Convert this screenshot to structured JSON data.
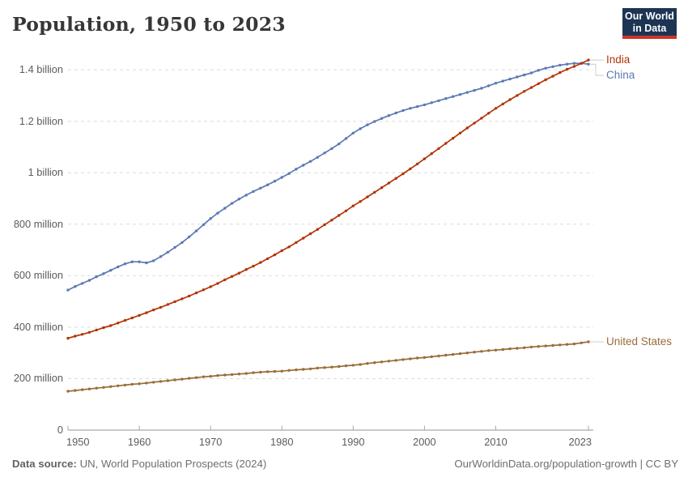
{
  "header": {
    "title": "Population, 1950 to 2023"
  },
  "logo": {
    "line1": "Our World",
    "line2": "in Data",
    "bg_color": "#1d3553",
    "accent_color": "#cc3529"
  },
  "footer": {
    "source_label": "Data source:",
    "source_text": "UN, World Population Prospects (2024)",
    "right_text": "OurWorldinData.org/population-growth | CC BY"
  },
  "chart_data": {
    "type": "line",
    "title": "Population, 1950 to 2023",
    "xlabel": "",
    "ylabel": "",
    "unit": "people (millions)",
    "xlim": [
      1950,
      2023
    ],
    "ylim": [
      0,
      1480
    ],
    "grid": "horizontal-dashed",
    "legend_position": "labels-at-line-ends-right",
    "markers": "yearly-dots",
    "x_start": 1950,
    "x_end": 2023,
    "x_ticks": [
      {
        "year": 1950,
        "label": "1950"
      },
      {
        "year": 1960,
        "label": "1960"
      },
      {
        "year": 1970,
        "label": "1970"
      },
      {
        "year": 1980,
        "label": "1980"
      },
      {
        "year": 1990,
        "label": "1990"
      },
      {
        "year": 2000,
        "label": "2000"
      },
      {
        "year": 2010,
        "label": "2010"
      },
      {
        "year": 2023,
        "label": "2023"
      }
    ],
    "y_ticks": [
      {
        "value": 0,
        "label": "0"
      },
      {
        "value": 200,
        "label": "200 million"
      },
      {
        "value": 400,
        "label": "400 million"
      },
      {
        "value": 600,
        "label": "600 million"
      },
      {
        "value": 800,
        "label": "800 million"
      },
      {
        "value": 1000,
        "label": "1 billion"
      },
      {
        "value": 1200,
        "label": "1.2 billion"
      },
      {
        "value": 1400,
        "label": "1.4 billion"
      }
    ],
    "series": [
      {
        "name": "India",
        "color": "#b13507",
        "values": [
          357,
          365,
          372,
          380,
          389,
          398,
          406,
          416,
          426,
          436,
          446,
          456,
          467,
          477,
          488,
          499,
          510,
          521,
          533,
          545,
          557,
          570,
          584,
          597,
          610,
          624,
          637,
          651,
          666,
          681,
          697,
          712,
          729,
          746,
          763,
          780,
          798,
          816,
          834,
          852,
          871,
          888,
          906,
          924,
          942,
          960,
          978,
          996,
          1015,
          1034,
          1054,
          1074,
          1094,
          1114,
          1134,
          1154,
          1174,
          1193,
          1212,
          1231,
          1250,
          1267,
          1284,
          1300,
          1316,
          1331,
          1346,
          1361,
          1375,
          1389,
          1402,
          1413,
          1425,
          1438
        ]
      },
      {
        "name": "China",
        "color": "#5b7ab2",
        "values": [
          544,
          558,
          570,
          582,
          596,
          608,
          621,
          634,
          646,
          654,
          654,
          650,
          658,
          674,
          691,
          710,
          729,
          751,
          774,
          798,
          822,
          843,
          862,
          881,
          898,
          913,
          927,
          940,
          953,
          967,
          982,
          997,
          1014,
          1029,
          1044,
          1060,
          1077,
          1094,
          1112,
          1133,
          1154,
          1171,
          1186,
          1199,
          1211,
          1222,
          1232,
          1242,
          1250,
          1257,
          1264,
          1272,
          1280,
          1288,
          1296,
          1304,
          1312,
          1320,
          1328,
          1338,
          1348,
          1356,
          1364,
          1372,
          1380,
          1388,
          1398,
          1406,
          1412,
          1418,
          1422,
          1425,
          1425,
          1422
        ]
      },
      {
        "name": "United States",
        "color": "#996d39",
        "values": [
          151,
          154,
          157,
          160,
          163,
          166,
          169,
          172,
          175,
          178,
          180,
          183,
          186,
          189,
          192,
          195,
          198,
          201,
          204,
          207,
          209,
          212,
          214,
          216,
          218,
          220,
          223,
          225,
          227,
          228,
          229,
          232,
          234,
          236,
          238,
          241,
          243,
          245,
          247,
          250,
          252,
          255,
          259,
          262,
          265,
          268,
          271,
          274,
          277,
          280,
          282,
          285,
          288,
          291,
          294,
          297,
          300,
          303,
          306,
          309,
          311,
          313,
          316,
          318,
          320,
          323,
          325,
          327,
          329,
          331,
          333,
          335,
          339,
          343
        ]
      }
    ]
  }
}
